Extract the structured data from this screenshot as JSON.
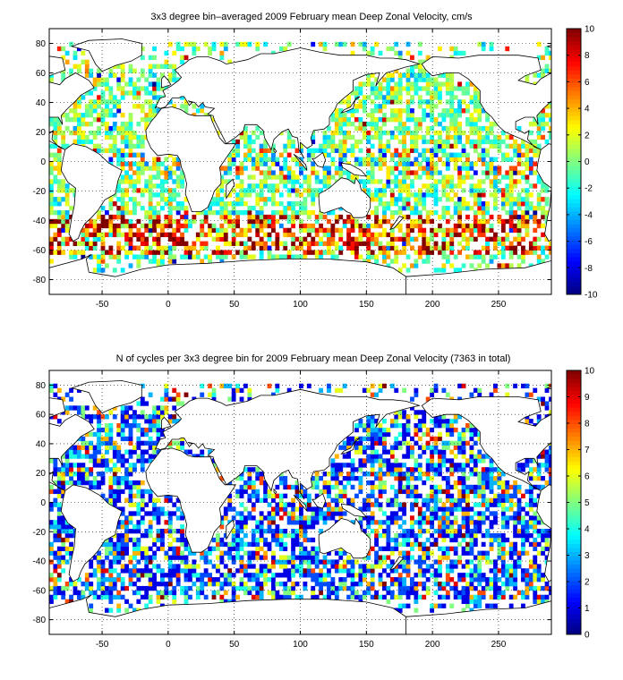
{
  "colors": {
    "colormap": "jet",
    "coastline": "#000000",
    "grid": "#000000",
    "background": "#ffffff"
  },
  "chart_data": [
    {
      "type": "heatmap",
      "title": "3x3 degree bin–averaged 2009 February mean Deep Zonal Velocity, cm/s",
      "bin_size_deg": 3,
      "xlim": [
        -90,
        290
      ],
      "ylim": [
        -90,
        90
      ],
      "xticks": [
        -50,
        0,
        50,
        100,
        150,
        200,
        250
      ],
      "yticks": [
        -80,
        -60,
        -40,
        -20,
        0,
        20,
        40,
        60,
        80
      ],
      "grid": true,
      "colorbar": {
        "min": -10,
        "max": 10,
        "ticks": [
          -10,
          -8,
          -6,
          -4,
          -2,
          0,
          2,
          4,
          6,
          8,
          10
        ],
        "placement": "right"
      },
      "value_pattern": "velocity"
    },
    {
      "type": "heatmap",
      "title": "N of cycles per 3x3 degree bin for 2009 February mean Deep Zonal Velocity (7363 in total)",
      "bin_size_deg": 3,
      "total_cycles": 7363,
      "xlim": [
        -90,
        290
      ],
      "ylim": [
        -90,
        90
      ],
      "xticks": [
        -50,
        0,
        50,
        100,
        150,
        200,
        250
      ],
      "yticks": [
        -80,
        -60,
        -40,
        -20,
        0,
        20,
        40,
        60,
        80
      ],
      "grid": true,
      "colorbar": {
        "min": 0,
        "max": 10,
        "ticks": [
          0,
          1,
          2,
          3,
          4,
          5,
          6,
          7,
          8,
          9,
          10
        ],
        "placement": "right"
      },
      "value_pattern": "count"
    }
  ]
}
